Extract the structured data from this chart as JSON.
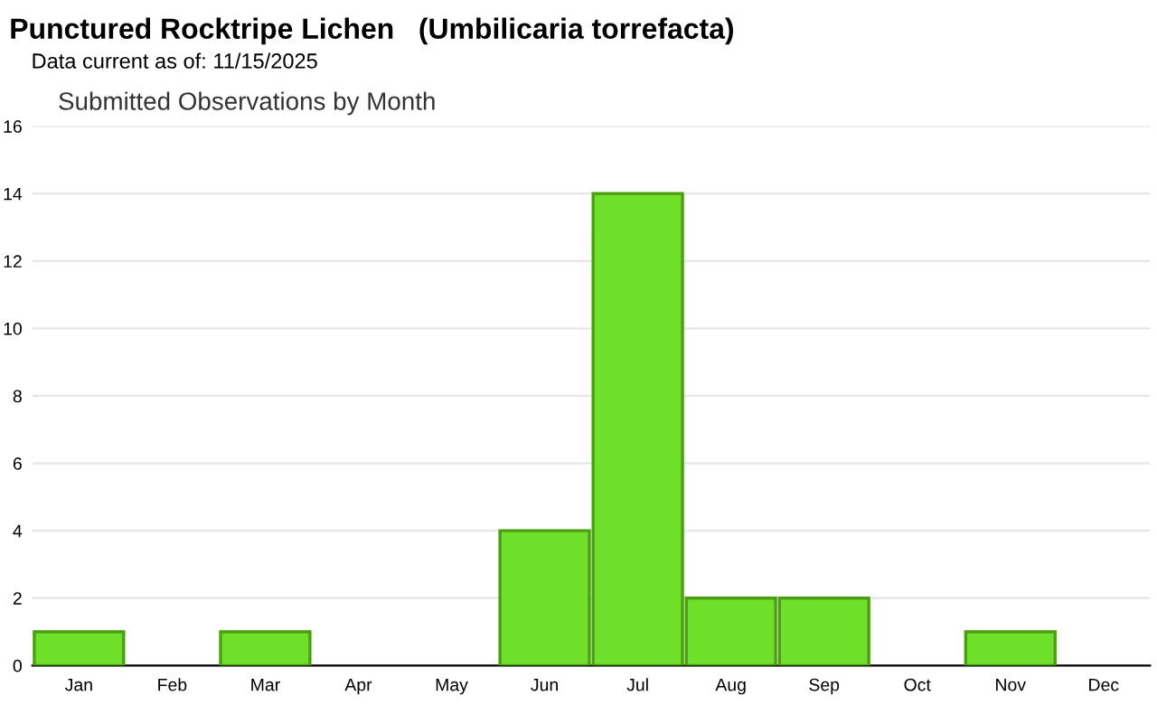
{
  "chart_data": {
    "type": "bar",
    "title": "Punctured Rocktripe Lichen   (Umbilicaria torrefacta)",
    "subtitle": "Data current as of: 11/15/2025",
    "annotations": [
      "Submitted Observations by Month"
    ],
    "categories": [
      "Jan",
      "Feb",
      "Mar",
      "Apr",
      "May",
      "Jun",
      "Jul",
      "Aug",
      "Sep",
      "Oct",
      "Nov",
      "Dec"
    ],
    "values": [
      1,
      0,
      1,
      0,
      0,
      4,
      14,
      2,
      2,
      0,
      1,
      0
    ],
    "color": "#6fe02a",
    "ylim": [
      0,
      16
    ],
    "yticks": [
      0,
      2,
      4,
      6,
      8,
      10,
      12,
      14,
      16
    ],
    "grid": "y"
  }
}
